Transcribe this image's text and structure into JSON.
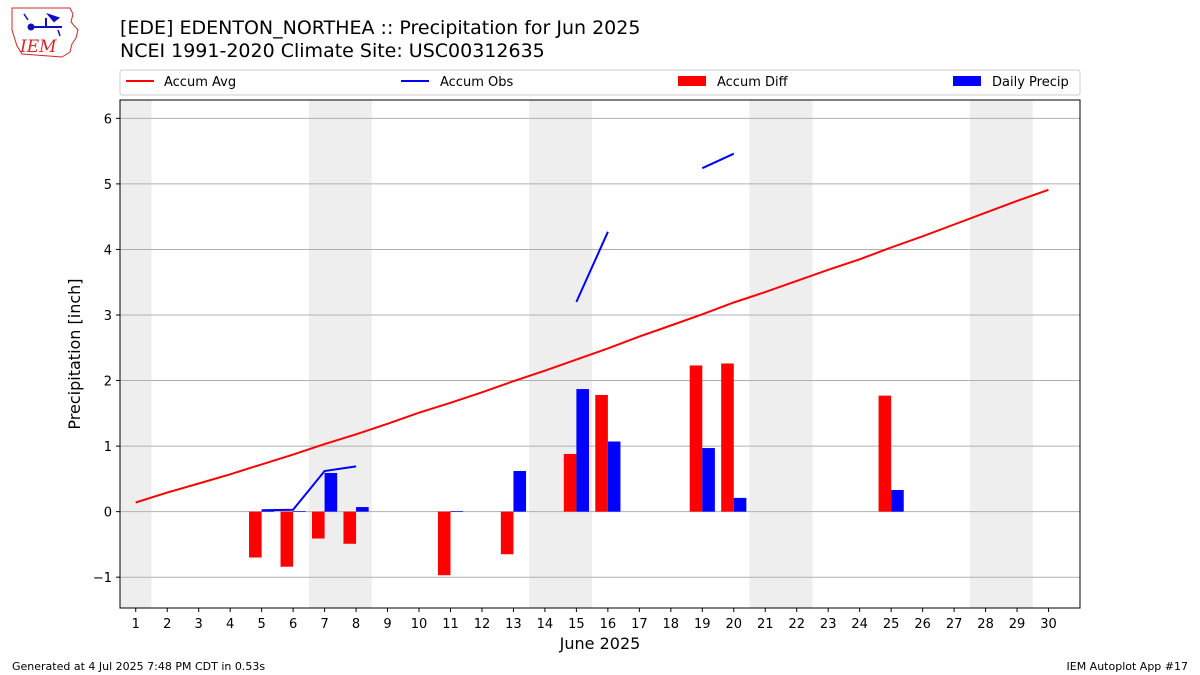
{
  "logo": {
    "text": "IEM"
  },
  "footer": {
    "left": "Generated at 4 Jul 2025 7:48 PM CDT in 0.53s",
    "right": "IEM Autoplot App #17"
  },
  "colors": {
    "accum_avg": "#ff0000",
    "accum_obs": "#0000ff",
    "accum_diff": "#ff0000",
    "daily_precip": "#0000ff",
    "weekend_shade": "#eeeeee",
    "grid": "#b0b0b0"
  },
  "chart_data": {
    "type": "bar",
    "title": "[EDE] EDENTON_NORTHEA :: Precipitation for Jun 2025",
    "subtitle": "NCEI 1991-2020 Climate Site: USC00312635",
    "xlabel": "June 2025",
    "ylabel": "Precipitation [inch]",
    "xlim": [
      0.5,
      31
    ],
    "ylim": [
      -1.47,
      6.28
    ],
    "yticks": [
      -1,
      0,
      1,
      2,
      3,
      4,
      5,
      6
    ],
    "ytick_labels": [
      "−1",
      "0",
      "1",
      "2",
      "3",
      "4",
      "5",
      "6"
    ],
    "x": [
      1,
      2,
      3,
      4,
      5,
      6,
      7,
      8,
      9,
      10,
      11,
      12,
      13,
      14,
      15,
      16,
      17,
      18,
      19,
      20,
      21,
      22,
      23,
      24,
      25,
      26,
      27,
      28,
      29,
      30
    ],
    "grid": "horizontal",
    "legend_position": "top",
    "shaded_days": [
      [
        0.5,
        1.5
      ],
      [
        6.5,
        8.5
      ],
      [
        13.5,
        15.5
      ],
      [
        20.5,
        22.5
      ],
      [
        27.5,
        29.5
      ]
    ],
    "series": [
      {
        "name": "Accum Avg",
        "kind": "line",
        "values": [
          0.14,
          0.29,
          0.43,
          0.57,
          0.72,
          0.87,
          1.03,
          1.18,
          1.34,
          1.51,
          1.66,
          1.82,
          1.99,
          2.15,
          2.32,
          2.49,
          2.67,
          2.84,
          3.01,
          3.19,
          3.35,
          3.52,
          3.69,
          3.85,
          4.03,
          4.2,
          4.38,
          4.56,
          4.74,
          4.91
        ]
      },
      {
        "name": "Accum Obs",
        "kind": "line",
        "values": [
          null,
          null,
          null,
          null,
          0.02,
          0.03,
          0.62,
          0.69,
          null,
          null,
          null,
          null,
          null,
          null,
          3.2,
          4.27,
          null,
          null,
          5.24,
          5.46,
          null,
          null,
          null,
          null,
          null,
          null,
          null,
          null,
          null,
          null
        ]
      },
      {
        "name": "Accum Diff",
        "kind": "bar",
        "values": [
          null,
          null,
          null,
          null,
          -0.7,
          -0.84,
          -0.41,
          -0.49,
          null,
          null,
          -0.97,
          null,
          -0.65,
          null,
          0.88,
          1.78,
          null,
          null,
          2.23,
          2.26,
          null,
          null,
          null,
          null,
          1.77,
          null,
          null,
          null,
          null,
          null
        ]
      },
      {
        "name": "Daily Precip",
        "kind": "bar",
        "values": [
          null,
          null,
          null,
          null,
          0.02,
          0.01,
          0.59,
          0.07,
          null,
          null,
          0.01,
          null,
          0.62,
          null,
          1.87,
          1.07,
          null,
          null,
          0.97,
          0.21,
          null,
          null,
          null,
          null,
          0.33,
          null,
          null,
          null,
          null,
          null
        ]
      }
    ]
  }
}
